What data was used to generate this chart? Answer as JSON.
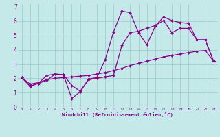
{
  "title": "",
  "xlabel": "Windchill (Refroidissement éolien,°C)",
  "xlim": [
    -0.5,
    23.5
  ],
  "ylim": [
    0,
    7.2
  ],
  "bg_color": "#c5e8e8",
  "line_color": "#880088",
  "grid_color": "#9fcece",
  "label_color": "#880088",
  "xticks": [
    0,
    1,
    2,
    3,
    4,
    5,
    6,
    7,
    8,
    9,
    10,
    11,
    12,
    13,
    14,
    15,
    16,
    17,
    18,
    19,
    20,
    21,
    22,
    23
  ],
  "yticks": [
    0,
    1,
    2,
    3,
    4,
    5,
    6
  ],
  "ytick_top": 7,
  "line1_x": [
    0,
    1,
    2,
    3,
    4,
    5,
    6,
    7,
    8,
    9,
    10,
    11,
    12,
    13,
    14,
    15,
    16,
    17,
    18,
    19,
    20,
    21,
    22,
    23
  ],
  "line1_y": [
    2.05,
    1.45,
    1.65,
    1.85,
    2.3,
    2.25,
    0.6,
    1.05,
    1.95,
    2.05,
    3.3,
    5.25,
    6.7,
    6.6,
    5.2,
    4.35,
    5.65,
    6.3,
    6.05,
    5.9,
    5.85,
    4.7,
    4.7,
    3.2
  ],
  "line2_x": [
    0,
    1,
    2,
    3,
    4,
    5,
    6,
    7,
    8,
    9,
    10,
    11,
    12,
    13,
    14,
    15,
    16,
    17,
    18,
    19,
    20,
    21,
    22,
    23
  ],
  "line2_y": [
    2.05,
    1.45,
    1.65,
    2.2,
    2.3,
    2.25,
    1.5,
    1.1,
    1.9,
    2.0,
    2.1,
    2.2,
    4.3,
    5.2,
    5.3,
    5.5,
    5.7,
    6.05,
    5.2,
    5.5,
    5.5,
    4.7,
    4.7,
    3.2
  ],
  "line3_x": [
    0,
    1,
    2,
    3,
    4,
    5,
    6,
    7,
    8,
    9,
    10,
    11,
    12,
    13,
    14,
    15,
    16,
    17,
    18,
    19,
    20,
    21,
    22,
    23
  ],
  "line3_y": [
    2.05,
    1.6,
    1.7,
    1.9,
    2.0,
    2.05,
    2.1,
    2.15,
    2.2,
    2.3,
    2.4,
    2.55,
    2.7,
    2.9,
    3.05,
    3.2,
    3.35,
    3.5,
    3.6,
    3.7,
    3.8,
    3.9,
    3.95,
    3.2
  ]
}
